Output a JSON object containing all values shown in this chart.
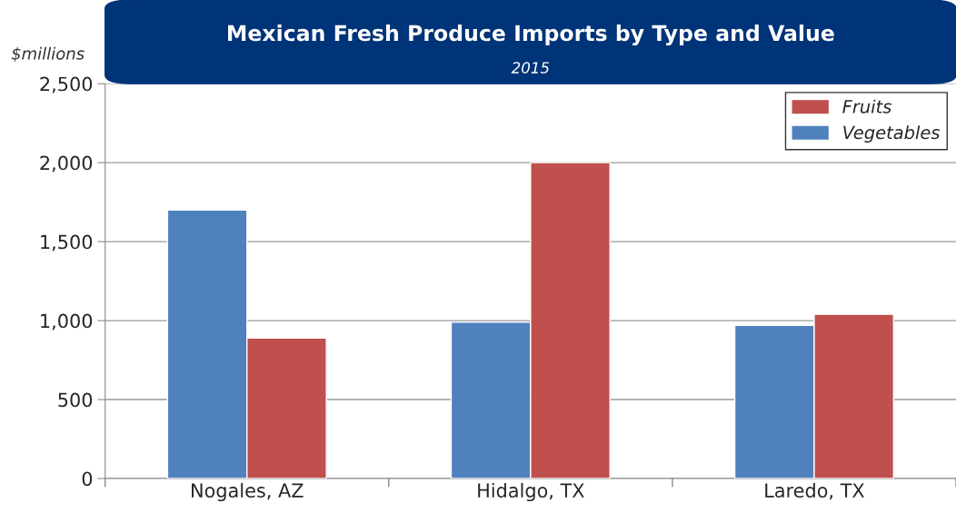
{
  "chart_data": {
    "type": "bar",
    "title": "Mexican Fresh Produce Imports by Type and Value",
    "subtitle": "2015",
    "ylabel": "$millions",
    "categories": [
      "Nogales, AZ",
      "Hidalgo, TX",
      "Laredo, TX"
    ],
    "series": [
      {
        "name": "Vegetables",
        "color": "#4f81bd",
        "values": [
          1700,
          990,
          970
        ]
      },
      {
        "name": "Fruits",
        "color": "#c0504d",
        "values": [
          890,
          2000,
          1040
        ]
      }
    ],
    "ylim": [
      0,
      2500
    ],
    "yticks": [
      0,
      {
        "value": 500,
        "label": "500"
      },
      {
        "value": 1000,
        "label": "1,000"
      },
      {
        "value": 1500,
        "label": "1,500"
      },
      {
        "value": 2000,
        "label": "2,000"
      },
      {
        "value": 2500,
        "label": "2,500"
      }
    ],
    "grid": "y",
    "legend": "top right"
  }
}
